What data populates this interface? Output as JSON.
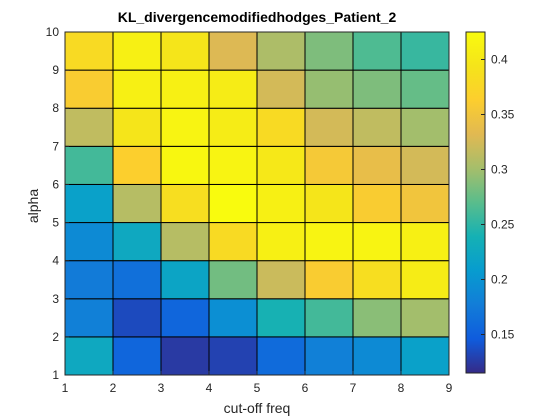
{
  "chart_data": {
    "type": "heatmap",
    "title": "KL_divergencemodifiedhodges_Patient_2",
    "xlabel": "cut-off freq",
    "ylabel": "alpha",
    "xlim": [
      1,
      9
    ],
    "ylim": [
      1,
      10
    ],
    "x_ticks": [
      "1",
      "2",
      "3",
      "4",
      "5",
      "6",
      "7",
      "8",
      "9"
    ],
    "y_ticks": [
      "1",
      "2",
      "3",
      "4",
      "5",
      "6",
      "7",
      "8",
      "9",
      "10"
    ],
    "colorbar": {
      "colormap": "parula",
      "range": [
        0.115,
        0.425
      ],
      "ticks": [
        "0.15",
        "0.2",
        "0.25",
        "0.3",
        "0.35",
        "0.4"
      ],
      "tick_values": [
        0.15,
        0.2,
        0.25,
        0.3,
        0.35,
        0.4
      ]
    },
    "x_centers": [
      1.5,
      2.5,
      3.5,
      4.5,
      5.5,
      6.5,
      7.5,
      8.5
    ],
    "y_centers": [
      1.5,
      2.5,
      3.5,
      4.5,
      5.5,
      6.5,
      7.5,
      8.5,
      9.5
    ],
    "values": [
      [
        0.225,
        0.155,
        0.125,
        0.13,
        0.16,
        0.18,
        0.19,
        0.215
      ],
      [
        0.18,
        0.135,
        0.155,
        0.195,
        0.24,
        0.26,
        0.29,
        0.3
      ],
      [
        0.175,
        0.165,
        0.22,
        0.28,
        0.32,
        0.36,
        0.385,
        0.405
      ],
      [
        0.19,
        0.225,
        0.31,
        0.38,
        0.41,
        0.415,
        0.415,
        0.41
      ],
      [
        0.215,
        0.31,
        0.385,
        0.425,
        0.41,
        0.395,
        0.36,
        0.35
      ],
      [
        0.26,
        0.365,
        0.42,
        0.415,
        0.4,
        0.355,
        0.34,
        0.325
      ],
      [
        0.315,
        0.395,
        0.415,
        0.405,
        0.38,
        0.325,
        0.315,
        0.3
      ],
      [
        0.36,
        0.41,
        0.41,
        0.405,
        0.325,
        0.295,
        0.285,
        0.275
      ],
      [
        0.38,
        0.41,
        0.395,
        0.33,
        0.305,
        0.285,
        0.265,
        0.255
      ]
    ]
  }
}
